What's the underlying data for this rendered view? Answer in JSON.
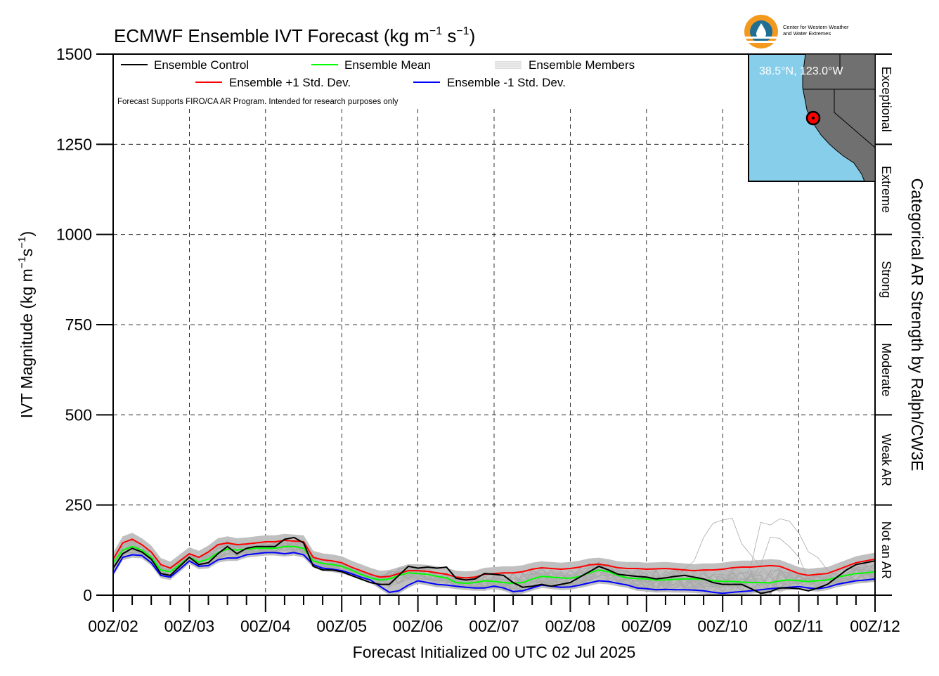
{
  "chart_data": {
    "type": "line",
    "title": "ECMWF Ensemble IVT Forecast (kg m⁻¹ s⁻¹)",
    "title_main": "ECMWF Ensemble IVT Forecast (kg m",
    "title_exp1": "−1",
    "title_mid": " s",
    "title_exp2": "−1",
    "title_end": ")",
    "ylabel": "IVT Magnitude (kg m⁻¹s⁻¹)",
    "ylabel_main": "IVT Magnitude (kg m",
    "ylabel_exp1": "−1",
    "ylabel_mid": "s",
    "ylabel_exp2": "−1",
    "ylabel_end": ")",
    "xlabel": "Forecast Initialized 00 UTC 02 Jul 2025",
    "right_label": "Categorical AR Strength by Ralph/CW3E",
    "disclaimer": "Forecast Supports FIRO/CA AR Program. Intended for research purposes only",
    "ylim": [
      0,
      1500
    ],
    "yticks": [
      0,
      250,
      500,
      750,
      1000,
      1250,
      1500
    ],
    "ytick_labels": [
      "0",
      "250",
      "500",
      "750",
      "1000",
      "1250",
      "1500"
    ],
    "xlim": [
      0,
      240
    ],
    "xtick_hours": [
      0,
      24,
      48,
      72,
      96,
      120,
      144,
      168,
      192,
      216,
      240
    ],
    "xtick_labels": [
      "00Z/02",
      "00Z/03",
      "00Z/04",
      "00Z/05",
      "00Z/06",
      "00Z/07",
      "00Z/08",
      "00Z/09",
      "00Z/10",
      "00Z/11",
      "00Z/12"
    ],
    "grid": true,
    "legend_position": "top-left",
    "categories": [
      {
        "label": "Not an AR",
        "min": 0,
        "max": 250
      },
      {
        "label": "Weak AR",
        "min": 250,
        "max": 500
      },
      {
        "label": "Moderate",
        "min": 500,
        "max": 750
      },
      {
        "label": "Strong",
        "min": 750,
        "max": 1000
      },
      {
        "label": "Extreme",
        "min": 1000,
        "max": 1250
      },
      {
        "label": "Exceptional",
        "min": 1250,
        "max": 1500
      }
    ],
    "series": [
      {
        "name": "Ensemble Control",
        "color": "#000000",
        "x": [
          0,
          3,
          6,
          9,
          12,
          15,
          18,
          21,
          24,
          27,
          30,
          33,
          36,
          39,
          42,
          45,
          48,
          51,
          54,
          57,
          60,
          63,
          66,
          69,
          72,
          75,
          78,
          81,
          84,
          87,
          90,
          93,
          96,
          99,
          102,
          105,
          108,
          111,
          114,
          117,
          120,
          123,
          126,
          129,
          132,
          135,
          138,
          141,
          144,
          147,
          150,
          153,
          156,
          159,
          162,
          165,
          168,
          171,
          174,
          177,
          180,
          183,
          186,
          189,
          192,
          195,
          198,
          201,
          204,
          207,
          210,
          213,
          216,
          219,
          222,
          225,
          228,
          231,
          234,
          237,
          240
        ],
        "y": [
          75,
          115,
          130,
          120,
          100,
          60,
          55,
          80,
          105,
          85,
          90,
          115,
          135,
          115,
          130,
          135,
          135,
          135,
          155,
          160,
          145,
          80,
          70,
          70,
          65,
          55,
          45,
          35,
          30,
          30,
          55,
          80,
          75,
          78,
          75,
          78,
          47,
          42,
          45,
          60,
          58,
          55,
          35,
          22,
          25,
          30,
          25,
          30,
          35,
          50,
          65,
          80,
          70,
          58,
          55,
          52,
          50,
          45,
          48,
          52,
          55,
          50,
          45,
          35,
          30,
          30,
          30,
          18,
          5,
          10,
          20,
          20,
          18,
          12,
          20,
          30,
          50,
          70,
          85,
          90,
          95
        ]
      },
      {
        "name": "Ensemble Mean",
        "color": "#00ff00",
        "x": [
          0,
          3,
          6,
          9,
          12,
          15,
          18,
          21,
          24,
          27,
          30,
          33,
          36,
          39,
          42,
          45,
          48,
          51,
          54,
          57,
          60,
          63,
          66,
          69,
          72,
          75,
          78,
          81,
          84,
          87,
          90,
          93,
          96,
          99,
          102,
          105,
          108,
          111,
          114,
          117,
          120,
          123,
          126,
          129,
          132,
          135,
          138,
          141,
          144,
          147,
          150,
          153,
          156,
          159,
          162,
          165,
          168,
          171,
          174,
          177,
          180,
          183,
          186,
          189,
          192,
          195,
          198,
          201,
          204,
          207,
          210,
          213,
          216,
          219,
          222,
          225,
          228,
          231,
          234,
          237,
          240
        ],
        "y": [
          90,
          125,
          135,
          125,
          105,
          70,
          65,
          85,
          105,
          92,
          100,
          118,
          128,
          125,
          128,
          130,
          130,
          130,
          135,
          135,
          130,
          95,
          88,
          85,
          80,
          70,
          58,
          48,
          42,
          45,
          55,
          62,
          60,
          58,
          52,
          48,
          35,
          33,
          35,
          40,
          38,
          35,
          33,
          35,
          45,
          52,
          50,
          48,
          47,
          52,
          62,
          70,
          65,
          55,
          48,
          46,
          45,
          42,
          42,
          44,
          45,
          45,
          44,
          40,
          38,
          38,
          36,
          35,
          35,
          34,
          40,
          42,
          40,
          38,
          40,
          42,
          50,
          55,
          60,
          62,
          65
        ]
      },
      {
        "name": "Ensemble +1 Std. Dev.",
        "color": "#ff0000",
        "x": [
          0,
          3,
          6,
          9,
          12,
          15,
          18,
          21,
          24,
          27,
          30,
          33,
          36,
          39,
          42,
          45,
          48,
          51,
          54,
          57,
          60,
          63,
          66,
          69,
          72,
          75,
          78,
          81,
          84,
          87,
          90,
          93,
          96,
          99,
          102,
          105,
          108,
          111,
          114,
          117,
          120,
          123,
          126,
          129,
          132,
          135,
          138,
          141,
          144,
          147,
          150,
          153,
          156,
          159,
          162,
          165,
          168,
          171,
          174,
          177,
          180,
          183,
          186,
          189,
          192,
          195,
          198,
          201,
          204,
          207,
          210,
          213,
          216,
          219,
          222,
          225,
          228,
          231,
          234,
          237,
          240
        ],
        "y": [
          100,
          145,
          155,
          140,
          120,
          85,
          75,
          95,
          115,
          105,
          120,
          140,
          145,
          140,
          142,
          145,
          148,
          148,
          152,
          150,
          148,
          105,
          98,
          95,
          90,
          78,
          68,
          58,
          50,
          52,
          60,
          68,
          68,
          66,
          62,
          58,
          50,
          48,
          50,
          58,
          60,
          62,
          62,
          65,
          72,
          76,
          74,
          72,
          74,
          78,
          84,
          86,
          82,
          76,
          74,
          74,
          72,
          73,
          74,
          72,
          70,
          68,
          70,
          70,
          72,
          76,
          78,
          78,
          80,
          82,
          80,
          70,
          60,
          55,
          58,
          60,
          70,
          80,
          90,
          95,
          100
        ]
      },
      {
        "name": "Ensemble -1 Std. Dev.",
        "color": "#0000ff",
        "x": [
          0,
          3,
          6,
          9,
          12,
          15,
          18,
          21,
          24,
          27,
          30,
          33,
          36,
          39,
          42,
          45,
          48,
          51,
          54,
          57,
          60,
          63,
          66,
          69,
          72,
          75,
          78,
          81,
          84,
          87,
          90,
          93,
          96,
          99,
          102,
          105,
          108,
          111,
          114,
          117,
          120,
          123,
          126,
          129,
          132,
          135,
          138,
          141,
          144,
          147,
          150,
          153,
          156,
          159,
          162,
          165,
          168,
          171,
          174,
          177,
          180,
          183,
          186,
          189,
          192,
          195,
          198,
          201,
          204,
          207,
          210,
          213,
          216,
          219,
          222,
          225,
          228,
          231,
          234,
          237,
          240
        ],
        "y": [
          60,
          105,
          112,
          110,
          90,
          55,
          50,
          72,
          95,
          80,
          82,
          98,
          103,
          103,
          112,
          115,
          118,
          118,
          115,
          118,
          112,
          85,
          75,
          72,
          68,
          60,
          50,
          42,
          25,
          8,
          12,
          28,
          40,
          35,
          30,
          28,
          25,
          22,
          20,
          20,
          25,
          20,
          10,
          12,
          20,
          28,
          25,
          22,
          23,
          28,
          34,
          40,
          38,
          33,
          28,
          20,
          18,
          15,
          16,
          15,
          15,
          14,
          12,
          8,
          5,
          8,
          10,
          12,
          15,
          18,
          20,
          22,
          24,
          20,
          18,
          22,
          30,
          35,
          40,
          42,
          45
        ]
      }
    ]
  },
  "legend": {
    "control": "Ensemble Control",
    "mean": "Ensemble Mean",
    "members": "Ensemble Members",
    "plus_sd": "Ensemble +1 Std. Dev.",
    "minus_sd": "Ensemble -1 Std. Dev."
  },
  "inset_map": {
    "location_label": "38.5°N, 123.0°W",
    "ocean_color": "#87ceeb",
    "land_color": "#707070",
    "marker_color": "#ff0000"
  },
  "logo": {
    "line1": "Center for Western Weather",
    "line2": "and Water Extremes"
  },
  "colors": {
    "members": "#a9a9a9",
    "spread_fill": "#c0c0c0"
  }
}
